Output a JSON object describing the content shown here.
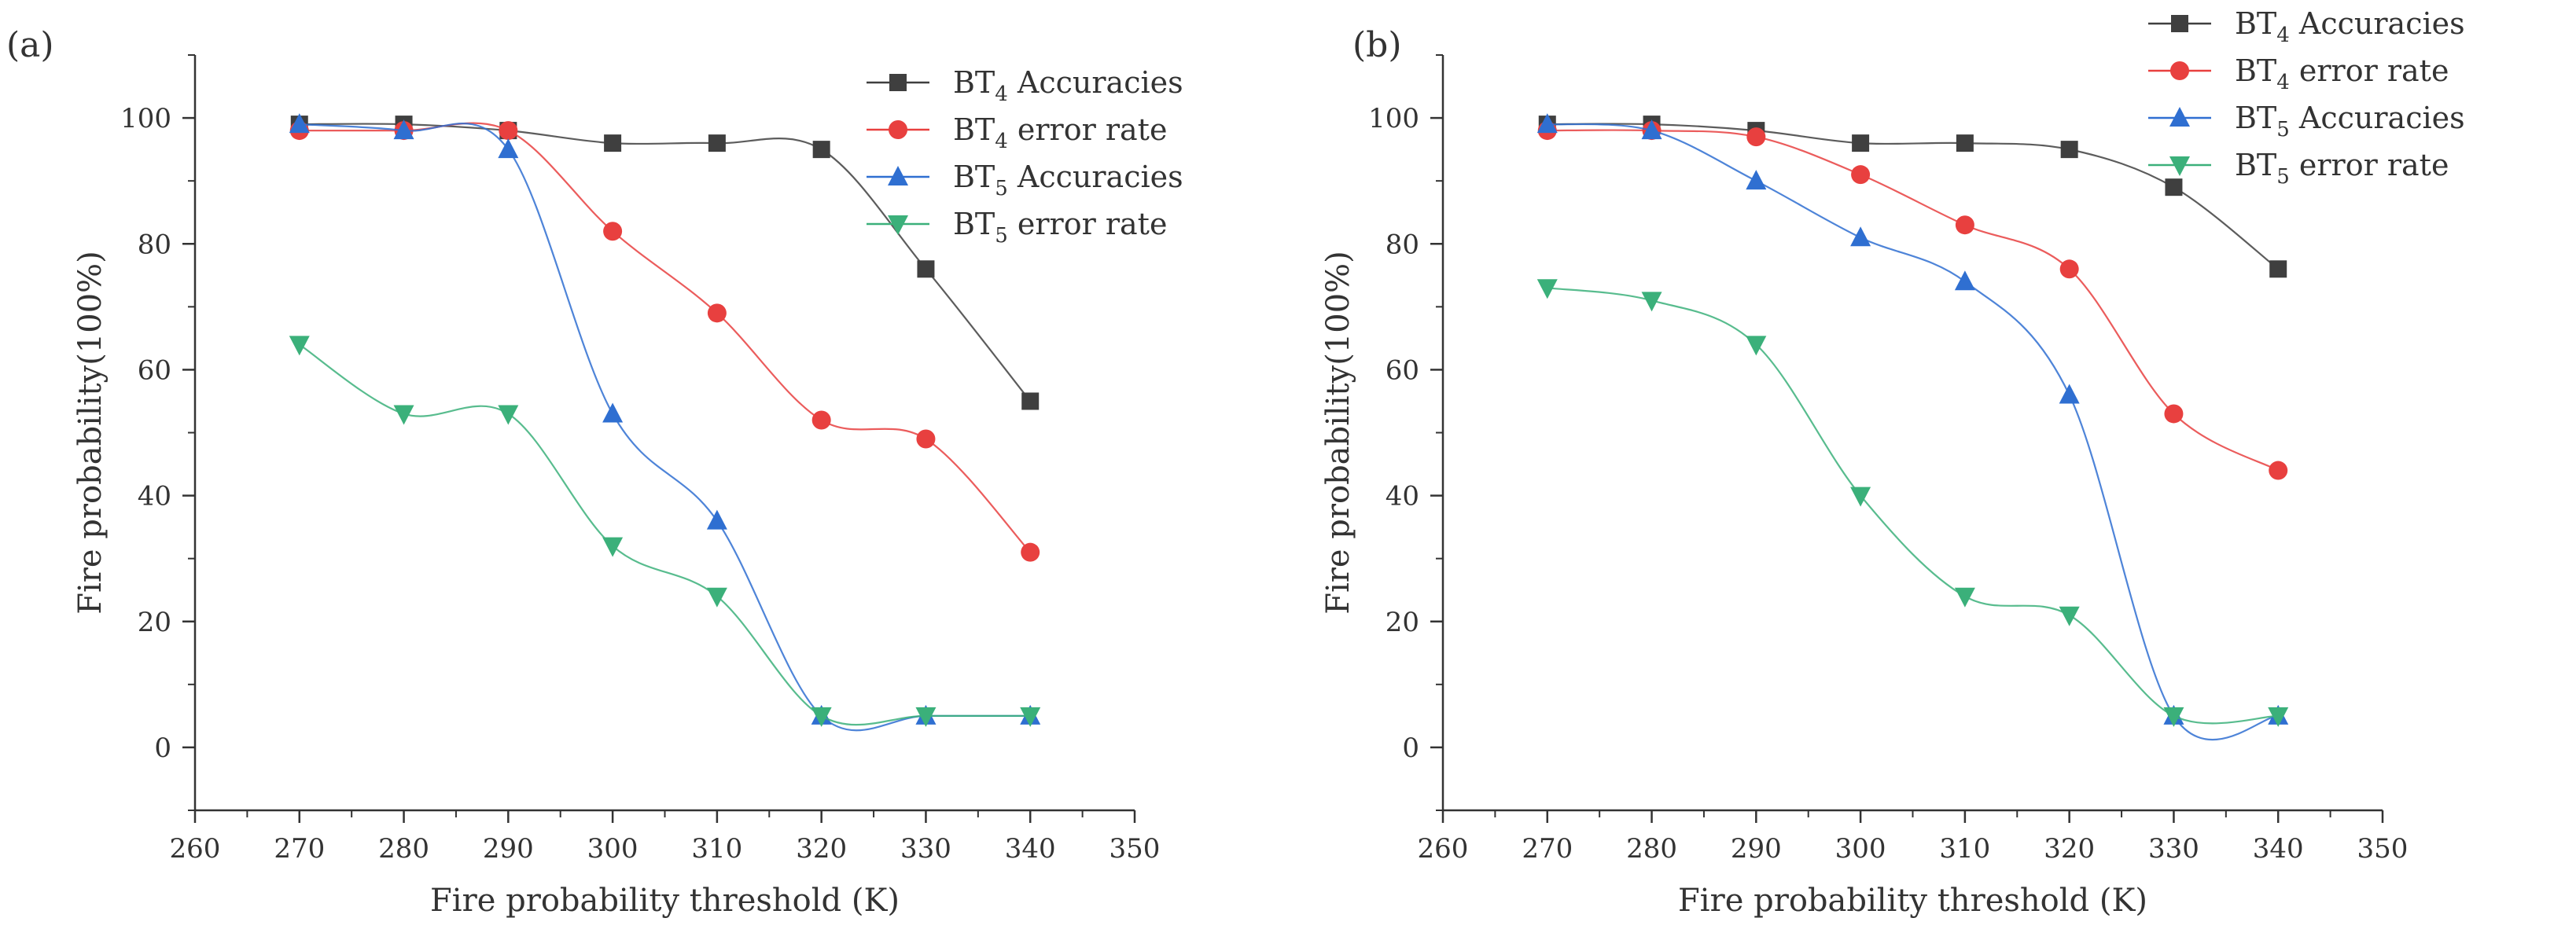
{
  "chart_data": [
    {
      "panel_label": "(a)",
      "type": "line",
      "xlabel": "Fire probability threshold (K)",
      "ylabel": "Fire probability(100%)",
      "xlim": [
        260,
        350
      ],
      "ylim": [
        -10,
        110
      ],
      "xticks": [
        260,
        270,
        280,
        290,
        300,
        310,
        320,
        330,
        340,
        350
      ],
      "yticks": [
        0,
        20,
        40,
        60,
        80,
        100
      ],
      "legend_position": "top-right",
      "x": [
        270,
        280,
        290,
        300,
        310,
        320,
        330,
        340
      ],
      "series": [
        {
          "name": "BT4 Accuracies",
          "base": "BT",
          "sub": "4",
          "rest": " Accuracies",
          "color": "#3f3f3f",
          "marker": "square",
          "values": [
            99,
            99,
            98,
            96,
            96,
            95,
            76,
            55
          ]
        },
        {
          "name": "BT4 error rate",
          "base": "BT",
          "sub": "4",
          "rest": " error rate",
          "color": "#e8403f",
          "marker": "circle",
          "values": [
            98,
            98,
            98,
            82,
            69,
            52,
            49,
            31
          ]
        },
        {
          "name": "BT5 Accuracies",
          "base": "BT",
          "sub": "5",
          "rest": " Accuracies",
          "color": "#2f6fd1",
          "marker": "triangle-up",
          "values": [
            99,
            98,
            95,
            53,
            36,
            5,
            5,
            5
          ]
        },
        {
          "name": "BT5 error rate",
          "base": "BT",
          "sub": "5",
          "rest": " error rate",
          "color": "#3bb07a",
          "marker": "triangle-down",
          "values": [
            64,
            53,
            53,
            32,
            24,
            5,
            5,
            5
          ]
        }
      ]
    },
    {
      "panel_label": "(b)",
      "type": "line",
      "xlabel": "Fire probability threshold (K)",
      "ylabel": "Fire probability(100%)",
      "xlim": [
        260,
        350
      ],
      "ylim": [
        -10,
        110
      ],
      "xticks": [
        260,
        270,
        280,
        290,
        300,
        310,
        320,
        330,
        340,
        350
      ],
      "yticks": [
        0,
        20,
        40,
        60,
        80,
        100
      ],
      "legend_position": "top-right",
      "x": [
        270,
        280,
        290,
        300,
        310,
        320,
        330,
        340
      ],
      "series": [
        {
          "name": "BT4 Accuracies",
          "base": "BT",
          "sub": "4",
          "rest": " Accuracies",
          "color": "#3f3f3f",
          "marker": "square",
          "values": [
            99,
            99,
            98,
            96,
            96,
            95,
            89,
            76
          ]
        },
        {
          "name": "BT4 error rate",
          "base": "BT",
          "sub": "4",
          "rest": " error rate",
          "color": "#e8403f",
          "marker": "circle",
          "values": [
            98,
            98,
            97,
            91,
            83,
            76,
            53,
            44
          ]
        },
        {
          "name": "BT5 Accuracies",
          "base": "BT",
          "sub": "5",
          "rest": " Accuracies",
          "color": "#2f6fd1",
          "marker": "triangle-up",
          "values": [
            99,
            98,
            90,
            81,
            74,
            56,
            5,
            5
          ]
        },
        {
          "name": "BT5 error rate",
          "base": "BT",
          "sub": "5",
          "rest": " error rate",
          "color": "#3bb07a",
          "marker": "triangle-down",
          "values": [
            73,
            71,
            64,
            40,
            24,
            21,
            5,
            5
          ]
        }
      ]
    }
  ]
}
